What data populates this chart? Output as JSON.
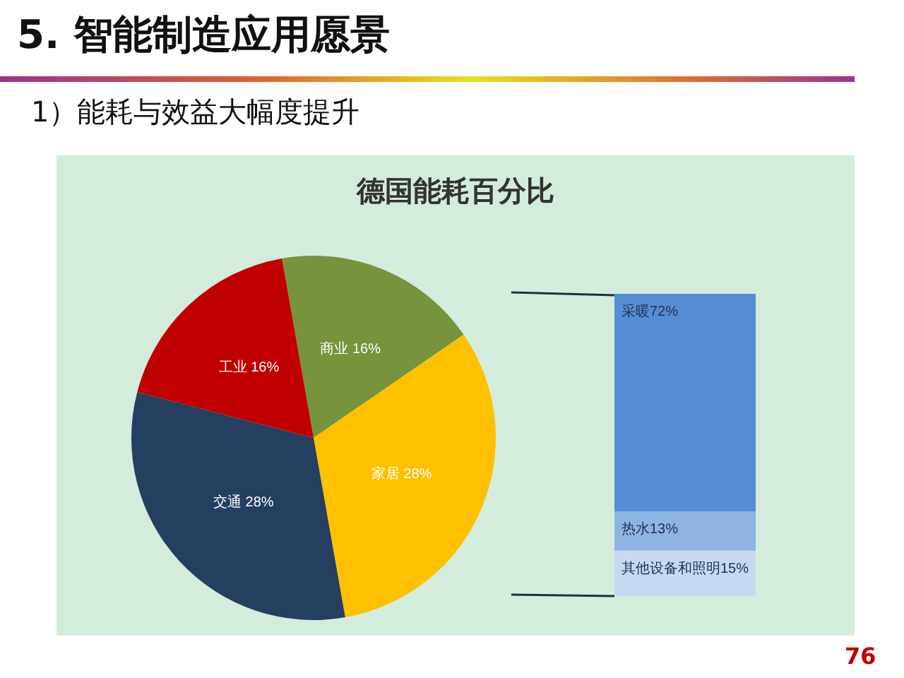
{
  "chart_data": [
    {
      "type": "pie",
      "title": "德国能耗百分比",
      "annotations": [
        "5. 智能制造应用愿景",
        "1）能耗与效益大幅度提升",
        "76"
      ],
      "categories": [
        "商业",
        "家居",
        "交通",
        "工业"
      ],
      "values": [
        16,
        28,
        28,
        16
      ],
      "value_labels": [
        "16%",
        "28%",
        "28%",
        "16%"
      ],
      "colors": [
        "#77933c",
        "#ffc000",
        "#243f60",
        "#c00000"
      ],
      "legend": false
    },
    {
      "type": "bar",
      "stacked": true,
      "categories": [
        null
      ],
      "legend": false,
      "series": [
        {
          "name": "其他设备和照明",
          "color": "#c6d9f1",
          "values": [
            15
          ],
          "value_labels": [
            "15%"
          ]
        },
        {
          "name": "热水",
          "color": "#8eb4e3",
          "values": [
            13
          ],
          "value_labels": [
            "13%"
          ]
        },
        {
          "name": "采暖",
          "color": "#558ed5",
          "values": [
            72
          ],
          "value_labels": [
            "72%"
          ]
        }
      ]
    }
  ]
}
